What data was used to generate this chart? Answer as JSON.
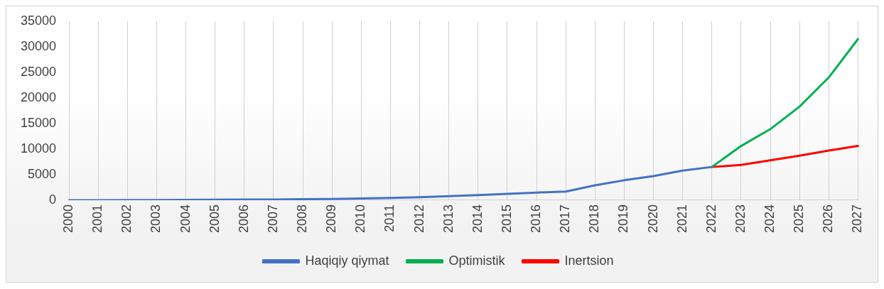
{
  "chart_data": {
    "type": "line",
    "categories": [
      "2000",
      "2001",
      "2002",
      "2003",
      "2004",
      "2005",
      "2006",
      "2007",
      "2008",
      "2009",
      "2010",
      "2011",
      "2012",
      "2013",
      "2014",
      "2015",
      "2016",
      "2017",
      "2018",
      "2019",
      "2020",
      "2021",
      "2022",
      "2023",
      "2024",
      "2025",
      "2026",
      "2027"
    ],
    "series": [
      {
        "name": "Haqiqiy qiymat",
        "color": "#4472c4",
        "values": [
          0,
          10,
          20,
          30,
          80,
          100,
          120,
          150,
          200,
          250,
          350,
          450,
          600,
          800,
          1000,
          1250,
          1500,
          1700,
          2900,
          3900,
          4700,
          5800,
          6500,
          null,
          null,
          null,
          null,
          null
        ]
      },
      {
        "name": "Optimistik",
        "color": "#00b050",
        "values": [
          null,
          null,
          null,
          null,
          null,
          null,
          null,
          null,
          null,
          null,
          null,
          null,
          null,
          null,
          null,
          null,
          null,
          null,
          null,
          null,
          null,
          null,
          6500,
          10600,
          13900,
          18300,
          24000,
          31500
        ]
      },
      {
        "name": "Inertsion",
        "color": "#ff0000",
        "values": [
          null,
          null,
          null,
          null,
          null,
          null,
          null,
          null,
          null,
          null,
          null,
          null,
          null,
          null,
          null,
          null,
          null,
          null,
          null,
          null,
          null,
          null,
          6500,
          6900,
          7800,
          8700,
          9700,
          10600
        ]
      }
    ],
    "ylim": [
      0,
      35000
    ],
    "yticks": [
      0,
      5000,
      10000,
      15000,
      20000,
      25000,
      30000,
      35000
    ],
    "grid": "x",
    "legend": "bottom"
  }
}
